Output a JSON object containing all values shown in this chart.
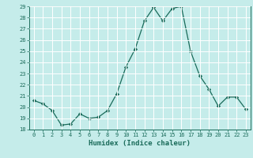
{
  "x": [
    0,
    1,
    2,
    3,
    4,
    5,
    6,
    7,
    8,
    9,
    10,
    11,
    12,
    13,
    14,
    15,
    16,
    17,
    18,
    19,
    20,
    21,
    22,
    23
  ],
  "y": [
    20.6,
    20.3,
    19.7,
    18.4,
    18.5,
    19.4,
    19.0,
    19.1,
    19.7,
    21.2,
    23.6,
    25.2,
    27.7,
    28.9,
    27.7,
    28.8,
    29.0,
    25.0,
    22.8,
    21.6,
    20.1,
    20.9,
    20.9,
    19.8
  ],
  "xlabel": "Humidex (Indice chaleur)",
  "ylim": [
    18,
    29
  ],
  "xlim_left": -0.5,
  "xlim_right": 23.5,
  "yticks": [
    18,
    19,
    20,
    21,
    22,
    23,
    24,
    25,
    26,
    27,
    28,
    29
  ],
  "xticks": [
    0,
    1,
    2,
    3,
    4,
    5,
    6,
    7,
    8,
    9,
    10,
    11,
    12,
    13,
    14,
    15,
    16,
    17,
    18,
    19,
    20,
    21,
    22,
    23
  ],
  "line_color": "#1a6b5a",
  "marker_color": "#1a6b5a",
  "bg_color": "#c5ecea",
  "grid_color": "#ffffff",
  "tick_label_color": "#1a6b5a",
  "xlabel_color": "#1a6b5a",
  "tick_fontsize": 5.0,
  "xlabel_fontsize": 6.5
}
